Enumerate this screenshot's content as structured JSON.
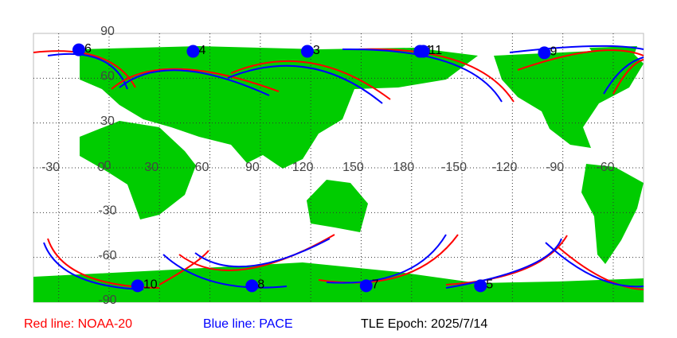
{
  "map": {
    "lon_labels": [
      -30,
      0,
      30,
      60,
      90,
      120,
      150,
      180,
      -150,
      -120,
      -90,
      -60
    ],
    "lat_labels": [
      90,
      60,
      30,
      0,
      -30,
      -60,
      -90
    ],
    "markers": [
      {
        "label": "6",
        "lon": -18,
        "lat": 79
      },
      {
        "label": "4",
        "lon": 50,
        "lat": 78
      },
      {
        "label": "3",
        "lon": 118,
        "lat": 78
      },
      {
        "label": "1",
        "lon": -175,
        "lat": 78
      },
      {
        "label": "11",
        "lon": -173,
        "lat": 78
      },
      {
        "label": "9",
        "lon": -101,
        "lat": 77
      },
      {
        "label": "10",
        "lon": 17,
        "lat": -79
      },
      {
        "label": "8",
        "lon": 85,
        "lat": -79
      },
      {
        "label": "7",
        "lon": 153,
        "lat": -79
      },
      {
        "label": "5",
        "lon": -139,
        "lat": -79
      }
    ]
  },
  "legend": {
    "red": "Red line: NOAA-20",
    "blue": "Blue line: PACE",
    "epoch": "TLE Epoch: 2025/7/14"
  }
}
